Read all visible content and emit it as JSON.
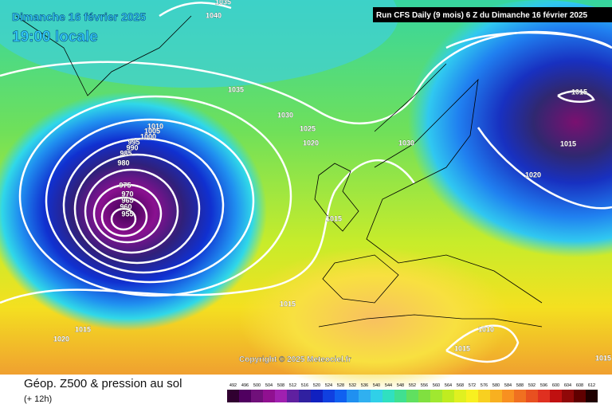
{
  "header": {
    "date": "Dimanche 16 février 2025",
    "time": "19:00 locale",
    "run": "Run CFS Daily (9 mois) 6 Z du Dimanche 16 février 2025"
  },
  "isobar_labels": [
    1035,
    1040,
    1035,
    1030,
    1025,
    1020,
    1030,
    1015,
    1015,
    1020,
    1010,
    1005,
    1000,
    995,
    990,
    985,
    980,
    975,
    970,
    965,
    960,
    955,
    1015,
    1015,
    1015,
    1020,
    1010,
    1015,
    1015
  ],
  "copyright": "Copyright © 2025 Meteociel.fr",
  "footer": {
    "title": "Géop. Z500 & pression au sol",
    "lead": "(+ 12h)"
  },
  "scale": {
    "labels": [
      492,
      496,
      500,
      504,
      508,
      512,
      516,
      520,
      524,
      528,
      532,
      536,
      540,
      544,
      548,
      552,
      556,
      560,
      564,
      568,
      572,
      576,
      580,
      584,
      588,
      592,
      596,
      600,
      604,
      608,
      612
    ]
  }
}
